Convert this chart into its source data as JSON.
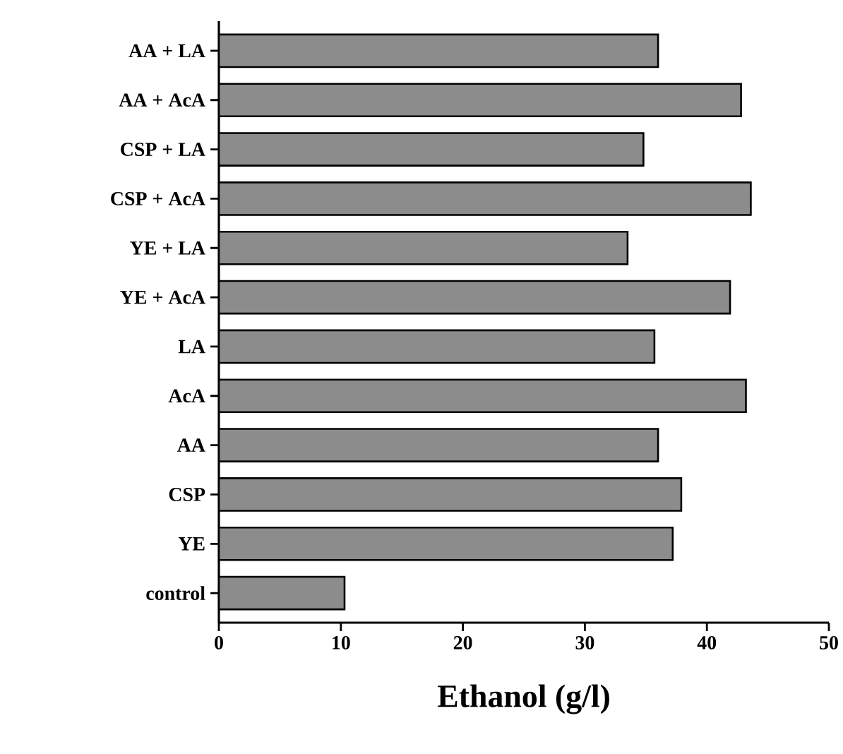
{
  "chart_data": {
    "type": "bar",
    "orientation": "horizontal",
    "xlabel": "Ethanol (g/l)",
    "categories": [
      "AA + LA",
      "AA + AcA",
      "CSP + LA",
      "CSP + AcA",
      "YE + LA",
      "YE + AcA",
      "LA",
      "AcA",
      "AA",
      "CSP",
      "YE",
      "control"
    ],
    "values": [
      36.0,
      42.8,
      34.8,
      43.6,
      33.5,
      41.9,
      35.7,
      43.2,
      36.0,
      37.9,
      37.2,
      10.3
    ],
    "color": "#8c8c8c",
    "xlim": [
      0,
      50
    ],
    "xticks": [
      0,
      10,
      20,
      30,
      40,
      50
    ],
    "grid": false
  }
}
